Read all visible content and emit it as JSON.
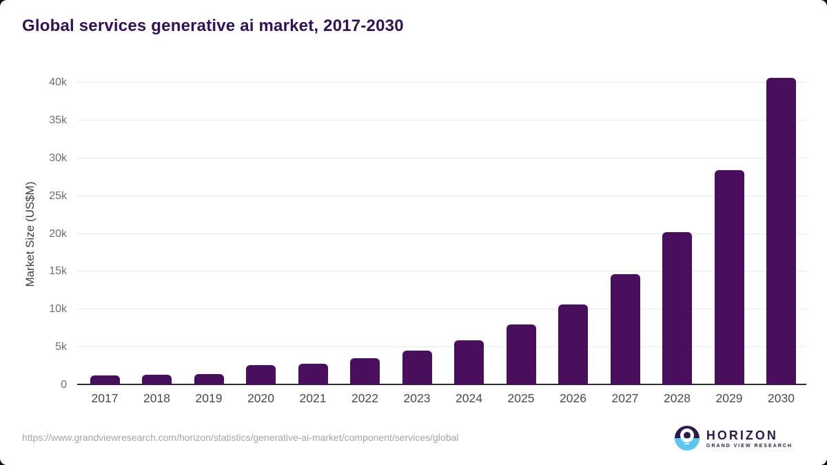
{
  "title": "Global services generative ai market, 2017-2030",
  "chart_data": {
    "type": "bar",
    "title": "Global services generative ai market, 2017-2030",
    "categories": [
      "2017",
      "2018",
      "2019",
      "2020",
      "2021",
      "2022",
      "2023",
      "2024",
      "2025",
      "2026",
      "2027",
      "2028",
      "2029",
      "2030"
    ],
    "values": [
      1300,
      1400,
      1500,
      2650,
      2800,
      3550,
      4550,
      5950,
      8000,
      10700,
      14650,
      20200,
      28400,
      40650
    ],
    "xlabel": "",
    "ylabel": "Market Size (US$M)",
    "ylim": [
      0,
      40000
    ],
    "ytick_step": 5000,
    "ytick_labels": [
      "0",
      "5k",
      "10k",
      "15k",
      "20k",
      "25k",
      "30k",
      "35k",
      "40k"
    ],
    "legend": "none",
    "grid": "horizontal",
    "bar_color": "#48105c",
    "gridline_color": "#e9e9e9",
    "axis_line_color": "#2d2d2d"
  },
  "colors": {
    "title": "#331253",
    "logo_dark": "#2b1a4a",
    "logo_blue": "#5cc6ee"
  },
  "footer": {
    "source_url": "https://www.grandviewresearch.com/horizon/statistics/generative-ai-market/component/services/global",
    "logo_name": "HORIZON",
    "logo_subtitle": "GRAND VIEW RESEARCH"
  }
}
